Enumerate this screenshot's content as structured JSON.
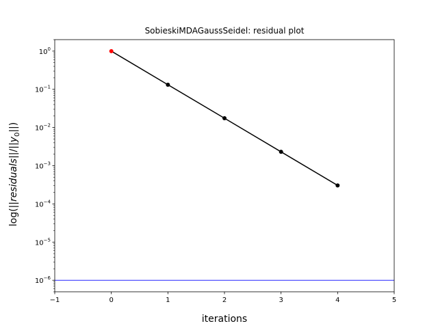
{
  "chart_data": {
    "type": "line",
    "title": "SobieskiMDAGaussSeidel: residual plot",
    "xlabel": "iterations",
    "ylabel": {
      "prefix": "log(||",
      "italic": "residuals",
      "middle": "||/||",
      "var": "y",
      "sub": "0",
      "suffix": "||)"
    },
    "xlim": [
      -1,
      5
    ],
    "ylim": [
      5e-07,
      2.0
    ],
    "yscale": "log",
    "grid": false,
    "x_ticks": [
      -1,
      0,
      1,
      2,
      3,
      4,
      5
    ],
    "y_ticks": [
      {
        "value": 1,
        "base": "10",
        "exp": "0"
      },
      {
        "value": 0.1,
        "base": "10",
        "exp": "−1"
      },
      {
        "value": 0.01,
        "base": "10",
        "exp": "−2"
      },
      {
        "value": 0.001,
        "base": "10",
        "exp": "−3"
      },
      {
        "value": 0.0001,
        "base": "10",
        "exp": "−4"
      },
      {
        "value": 1e-05,
        "base": "10",
        "exp": "−5"
      },
      {
        "value": 1e-06,
        "base": "10",
        "exp": "−6"
      }
    ],
    "series": [
      {
        "x": [
          0,
          1,
          2,
          3,
          4
        ],
        "y": [
          1.0,
          0.132,
          0.0175,
          0.00231,
          0.000305
        ],
        "line_color": "#000000",
        "marker_color": "#000000",
        "first_marker_color": "#ff0000"
      }
    ],
    "tolerance": {
      "y": 1e-06,
      "color": "#0000ff"
    }
  }
}
